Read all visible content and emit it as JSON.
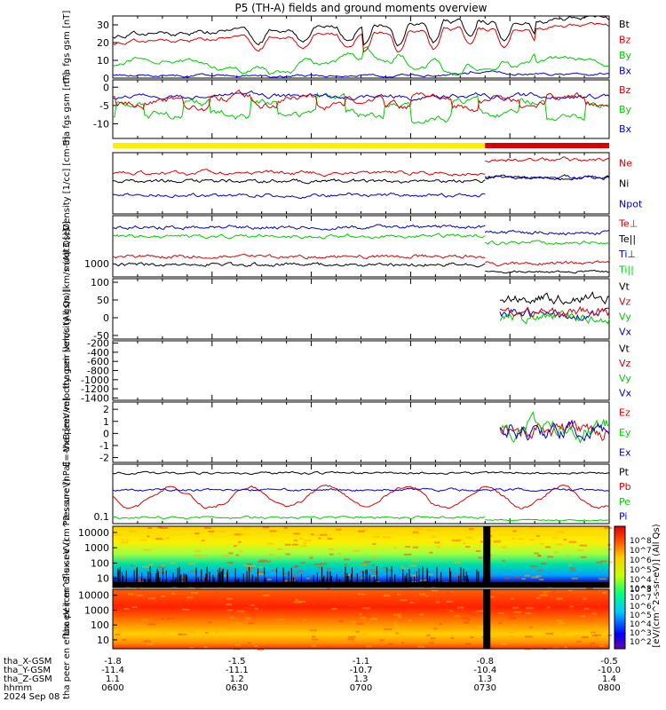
{
  "title": "P5 (TH-A) fields and ground moments overview",
  "footer": {
    "row_labels": [
      "tha_X-GSM",
      "tha_Y-GSM",
      "tha_Z-GSM",
      "hhmm",
      "2024 Sep 08"
    ],
    "columns": [
      [
        "-1.8",
        "-11.4",
        "1.1",
        "0600"
      ],
      [
        "-1.5",
        "-11.1",
        "1.2",
        "0630"
      ],
      [
        "-1.1",
        "-10.7",
        "1.3",
        "0700"
      ],
      [
        "-0.8",
        "-10.4",
        "1.3",
        "0730"
      ],
      [
        "-0.5",
        "-10.0",
        "1.4",
        "0800"
      ]
    ]
  },
  "colorbar_label": "[eV/(cm^2-s-sr-eV)] (All Qs)",
  "colorbar_ticks_top": [
    "10^8",
    "10^7",
    "10^6",
    "10^5",
    "10^4",
    "10^3"
  ],
  "colorbar_ticks_bottom": [
    "10^8",
    "10^7",
    "10^6",
    "10^5",
    "10^4",
    "10^3",
    "10^2"
  ],
  "colors": {
    "black": "#000000",
    "red": "#dd0000",
    "green": "#00cc00",
    "blue": "#0000cc",
    "yellow": "#ffee00"
  },
  "chart_data": [
    {
      "type": "line",
      "panel": "fgs_mag",
      "ylabel": "tha fgs gsm [nT]",
      "ylim": [
        0,
        35
      ],
      "ticks": [
        "30",
        "20",
        "10",
        "0"
      ],
      "series": [
        {
          "name": "Bt",
          "color": "black",
          "approx_level": 28
        },
        {
          "name": "Bz",
          "color": "red",
          "approx_level": 25
        },
        {
          "name": "By",
          "color": "green",
          "approx_level": 10
        },
        {
          "name": "Bx",
          "color": "blue",
          "approx_level": 1
        }
      ]
    },
    {
      "type": "line",
      "panel": "fgs_comp",
      "ylabel": "tha fgs gsm [nT]",
      "ylim": [
        -14,
        2
      ],
      "ticks": [
        "0",
        "-5",
        "-10"
      ],
      "series": [
        {
          "name": "Bz",
          "color": "red",
          "approx_level": -3
        },
        {
          "name": "By",
          "color": "green",
          "approx_level": -8
        },
        {
          "name": "Bx",
          "color": "blue",
          "approx_level": -2
        }
      ]
    },
    {
      "type": "bar",
      "panel": "mode_bar",
      "segments": [
        {
          "color": "yellow",
          "from": "0600",
          "to": "0730"
        },
        {
          "color": "red",
          "from": "0730",
          "to": "0800"
        }
      ]
    },
    {
      "type": "line",
      "panel": "density",
      "ylabel": "Density [1/cc] [cm-3]",
      "series": [
        {
          "name": "Ne",
          "color": "red"
        },
        {
          "name": "Ni",
          "color": "black"
        },
        {
          "name": "Npot",
          "color": "blue"
        }
      ]
    },
    {
      "type": "line",
      "panel": "temperature",
      "ylabel": "moqt3 [eV]",
      "ticks": [
        "1000"
      ],
      "series": [
        {
          "name": "Te⊥",
          "color": "red"
        },
        {
          "name": "Te||",
          "color": "black"
        },
        {
          "name": "Ti⊥",
          "color": "blue"
        },
        {
          "name": "Ti||",
          "color": "green"
        }
      ]
    },
    {
      "type": "line",
      "panel": "peir_velocity",
      "ylabel": "tha peir velocity gsm [km/s (All Qs)]",
      "ylim": [
        -60,
        110
      ],
      "ticks": [
        "100",
        "50",
        "0",
        "-50"
      ],
      "series": [
        {
          "name": "Vt",
          "color": "black"
        },
        {
          "name": "Vz",
          "color": "red"
        },
        {
          "name": "Vy",
          "color": "green"
        },
        {
          "name": "Vx",
          "color": "blue"
        }
      ]
    },
    {
      "type": "line",
      "panel": "peer_velocity",
      "ylabel": "tha peer velocity gsm [km/s (All Qs)]",
      "ylim": [
        -1450,
        -150
      ],
      "ticks": [
        "-200",
        "-400",
        "-600",
        "-800",
        "-1000",
        "-1200",
        "-1400"
      ],
      "series": [
        {
          "name": "Vt",
          "color": "black"
        },
        {
          "name": "Vz",
          "color": "red"
        },
        {
          "name": "Vy",
          "color": "green"
        },
        {
          "name": "Vx",
          "color": "blue"
        }
      ]
    },
    {
      "type": "line",
      "panel": "efield",
      "ylabel": "E=-VxB [mV/m]",
      "ylim": [
        -2.4,
        2.6
      ],
      "ticks": [
        "2",
        "1",
        "0",
        "-1",
        "-2"
      ],
      "series": [
        {
          "name": "Ez",
          "color": "red"
        },
        {
          "name": "Ey",
          "color": "green"
        },
        {
          "name": "Ex",
          "color": "blue"
        }
      ]
    },
    {
      "type": "line",
      "panel": "pressure",
      "ylabel": "Pressure [nPa]",
      "ticks": [
        "0.1"
      ],
      "series": [
        {
          "name": "Pt",
          "color": "black"
        },
        {
          "name": "Pb",
          "color": "red"
        },
        {
          "name": "Pe",
          "color": "green"
        },
        {
          "name": "Pi",
          "color": "blue"
        }
      ]
    },
    {
      "type": "heatmap",
      "panel": "peir_spec",
      "ylabel": "tha peir en eflux eV (cm^2-s-sr-eV)",
      "yticks": [
        "10000",
        "1000",
        "100",
        "10"
      ]
    },
    {
      "type": "heatmap",
      "panel": "peer_spec",
      "ylabel": "tha peer en eflux eV (cm^2-s-sr-eV)",
      "yticks": [
        "10000",
        "1000",
        "100",
        "10"
      ]
    }
  ]
}
